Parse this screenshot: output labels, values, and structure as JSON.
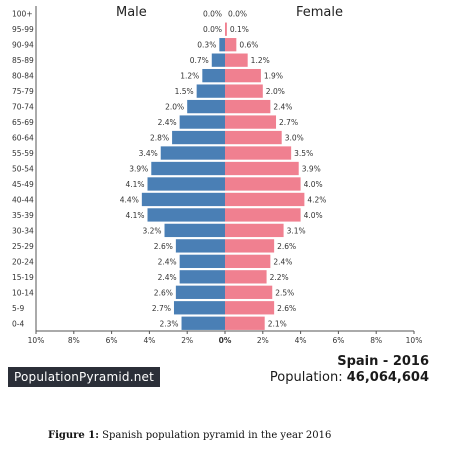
{
  "chart_data": {
    "type": "bar",
    "orientation": "horizontal-pyramid",
    "categories": [
      "100+",
      "95-99",
      "90-94",
      "85-89",
      "80-84",
      "75-79",
      "70-74",
      "65-69",
      "60-64",
      "55-59",
      "50-54",
      "45-49",
      "40-44",
      "35-39",
      "30-34",
      "25-29",
      "20-24",
      "15-19",
      "10-14",
      "5-9",
      "0-4"
    ],
    "series": [
      {
        "name": "Male",
        "color": "#4a7fb5",
        "value_labels": [
          "0.0%",
          "0.0%",
          "0.3%",
          "0.7%",
          "1.2%",
          "1.5%",
          "2.0%",
          "2.4%",
          "2.8%",
          "3.4%",
          "3.9%",
          "4.1%",
          "4.4%",
          "4.1%",
          "3.2%",
          "2.6%",
          "2.4%",
          "2.4%",
          "2.6%",
          "2.7%",
          "2.3%"
        ],
        "values": [
          0.0,
          0.0,
          0.3,
          0.7,
          1.2,
          1.5,
          2.0,
          2.4,
          2.8,
          3.4,
          3.9,
          4.1,
          4.4,
          4.1,
          3.2,
          2.6,
          2.4,
          2.4,
          2.6,
          2.7,
          2.3
        ]
      },
      {
        "name": "Female",
        "color": "#f08090",
        "value_labels": [
          "0.0%",
          "0.1%",
          "0.6%",
          "1.2%",
          "1.9%",
          "2.0%",
          "2.4%",
          "2.7%",
          "3.0%",
          "3.5%",
          "3.9%",
          "4.0%",
          "4.2%",
          "4.0%",
          "3.1%",
          "2.6%",
          "2.4%",
          "2.2%",
          "2.5%",
          "2.6%",
          "2.1%"
        ],
        "values": [
          0.0,
          0.1,
          0.6,
          1.2,
          1.9,
          2.0,
          2.4,
          2.7,
          3.0,
          3.5,
          3.9,
          4.0,
          4.2,
          4.0,
          3.1,
          2.6,
          2.4,
          2.2,
          2.5,
          2.6,
          2.1
        ]
      }
    ],
    "x_tick_labels": [
      "10%",
      "8%",
      "6%",
      "4%",
      "2%",
      "0%",
      "2%",
      "4%",
      "6%",
      "8%",
      "10%"
    ],
    "xlim": [
      -10,
      10
    ],
    "grid": false
  },
  "brand": "PopulationPyramid.net",
  "country_year": "Spain - 2016",
  "population_label": "Population:",
  "population_value": "46,064,604",
  "caption": {
    "label": "Figure 1:",
    "text": "Spanish population pyramid in the year 2016"
  }
}
